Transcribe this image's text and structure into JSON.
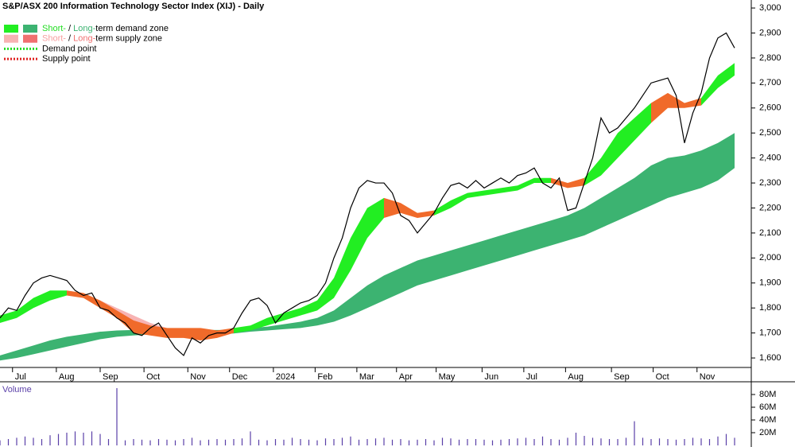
{
  "chart_data": [
    {
      "type": "line",
      "title": "S&P/ASX 200 Information Technology Sector Index (XIJ) - Daily",
      "xlim": [
        0,
        360
      ],
      "xticks": [
        {
          "value": 6,
          "label": "Jul"
        },
        {
          "value": 27,
          "label": "Aug"
        },
        {
          "value": 48,
          "label": "Sep"
        },
        {
          "value": 69,
          "label": "Oct"
        },
        {
          "value": 90,
          "label": "Nov"
        },
        {
          "value": 110,
          "label": "Dec"
        },
        {
          "value": 131,
          "label": "2024"
        },
        {
          "value": 151,
          "label": "Feb"
        },
        {
          "value": 171,
          "label": "Mar"
        },
        {
          "value": 190,
          "label": "Apr"
        },
        {
          "value": 209,
          "label": "May"
        },
        {
          "value": 231,
          "label": "Jun"
        },
        {
          "value": 251,
          "label": "Jul"
        },
        {
          "value": 271,
          "label": "Aug"
        },
        {
          "value": 293,
          "label": "Sep"
        },
        {
          "value": 313,
          "label": "Oct"
        },
        {
          "value": 334,
          "label": "Nov"
        }
      ],
      "ylim": [
        1562,
        3032
      ],
      "yticks": [
        {
          "value": 1600,
          "label": "1,600"
        },
        {
          "value": 1700,
          "label": "1,700"
        },
        {
          "value": 1800,
          "label": "1,800"
        },
        {
          "value": 1900,
          "label": "1,900"
        },
        {
          "value": 2000,
          "label": "2,000"
        },
        {
          "value": 2100,
          "label": "2,100"
        },
        {
          "value": 2200,
          "label": "2,200"
        },
        {
          "value": 2300,
          "label": "2,300"
        },
        {
          "value": 2400,
          "label": "2,400"
        },
        {
          "value": 2500,
          "label": "2,500"
        },
        {
          "value": 2600,
          "label": "2,600"
        },
        {
          "value": 2700,
          "label": "2,700"
        },
        {
          "value": 2800,
          "label": "2,800"
        },
        {
          "value": 2900,
          "label": "2,900"
        },
        {
          "value": 3000,
          "label": "3,000"
        }
      ],
      "legend": [
        {
          "swatches": [
            "#22ee22",
            "#3cb371"
          ],
          "parts": [
            "Short-",
            " / ",
            "Long-",
            "term demand zone"
          ],
          "part_colors": [
            "#22dd22",
            "#000000",
            "#3cb371",
            "#000000"
          ]
        },
        {
          "swatches": [
            "#f7b3b3",
            "#f07070"
          ],
          "parts": [
            "Short-",
            " / ",
            "Long-",
            "term supply zone"
          ],
          "part_colors": [
            "#f7a0a0",
            "#000000",
            "#f07070",
            "#000000"
          ]
        },
        {
          "line": "#22dd22",
          "parts": [
            "Demand point"
          ],
          "part_colors": [
            "#000000"
          ]
        },
        {
          "line": "#e02020",
          "parts": [
            "Supply point"
          ],
          "part_colors": [
            "#000000"
          ]
        }
      ],
      "zone_x": [
        0,
        8,
        16,
        24,
        32,
        40,
        48,
        56,
        64,
        72,
        80,
        88,
        96,
        104,
        112,
        120,
        128,
        136,
        144,
        152,
        160,
        168,
        176,
        184,
        192,
        200,
        208,
        216,
        224,
        232,
        240,
        248,
        256,
        264,
        272,
        280,
        288,
        296,
        304,
        312,
        320,
        328,
        336,
        344,
        352
      ],
      "zones": [
        {
          "color": "#3cb371",
          "upper": [
            1610,
            1630,
            1650,
            1670,
            1685,
            1695,
            1705,
            1710,
            1712,
            1713,
            1712,
            1712,
            1712,
            1712,
            1712,
            1720,
            1725,
            1735,
            1745,
            1760,
            1790,
            1840,
            1890,
            1930,
            1960,
            1990,
            2010,
            2030,
            2050,
            2070,
            2090,
            2110,
            2130,
            2150,
            2170,
            2200,
            2240,
            2280,
            2320,
            2370,
            2400,
            2410,
            2430,
            2460,
            2500
          ],
          "lower": [
            1590,
            1600,
            1615,
            1630,
            1645,
            1660,
            1675,
            1685,
            1690,
            1695,
            1695,
            1695,
            1695,
            1695,
            1698,
            1705,
            1710,
            1715,
            1720,
            1730,
            1745,
            1770,
            1800,
            1830,
            1860,
            1890,
            1910,
            1930,
            1950,
            1970,
            1990,
            2010,
            2030,
            2050,
            2070,
            2090,
            2120,
            2150,
            2180,
            2210,
            2240,
            2260,
            2280,
            2310,
            2360
          ]
        },
        {
          "color": "#f7b3b3",
          "upper": [
            null,
            null,
            null,
            null,
            null,
            null,
            1830,
            1800,
            1770,
            1740,
            1720,
            1700,
            null,
            null,
            null,
            null,
            null,
            null,
            null,
            null,
            null,
            null,
            null,
            null,
            null,
            null,
            null,
            null,
            null,
            null,
            null,
            null,
            null,
            null,
            null,
            null,
            null,
            null,
            null,
            null,
            null,
            null,
            null,
            null,
            null
          ],
          "lower": [
            null,
            null,
            null,
            null,
            null,
            null,
            1800,
            1760,
            1720,
            1700,
            1690,
            1690,
            null,
            null,
            null,
            null,
            null,
            null,
            null,
            null,
            null,
            null,
            null,
            null,
            null,
            null,
            null,
            null,
            null,
            null,
            null,
            null,
            null,
            null,
            null,
            null,
            null,
            null,
            null,
            null,
            null,
            null,
            null,
            null,
            null
          ]
        },
        {
          "color": "#22ee22",
          "upper": [
            1770,
            1790,
            1840,
            1870,
            1870,
            null,
            null,
            null,
            null,
            null,
            null,
            null,
            null,
            null,
            1720,
            1730,
            1760,
            1780,
            1800,
            1830,
            1920,
            2080,
            2200,
            2240,
            null,
            null,
            2190,
            2230,
            2260,
            2270,
            2280,
            2290,
            2320,
            2320,
            null,
            2320,
            2400,
            2500,
            2560,
            2620,
            null,
            null,
            2640,
            2730,
            2780
          ],
          "lower": [
            1740,
            1760,
            1800,
            1830,
            1850,
            null,
            null,
            null,
            null,
            null,
            null,
            null,
            null,
            null,
            1700,
            1710,
            1730,
            1750,
            1770,
            1790,
            1840,
            1950,
            2080,
            2160,
            null,
            null,
            2170,
            2200,
            2240,
            2250,
            2260,
            2270,
            2300,
            2300,
            null,
            2290,
            2330,
            2400,
            2470,
            2540,
            null,
            null,
            2610,
            2680,
            2730
          ]
        },
        {
          "color": "#f06a2a",
          "upper": [
            null,
            null,
            null,
            null,
            1870,
            1860,
            1830,
            1790,
            1750,
            1730,
            1720,
            1720,
            1720,
            1710,
            1720,
            null,
            null,
            null,
            null,
            null,
            null,
            null,
            null,
            2240,
            2220,
            2180,
            2190,
            null,
            null,
            null,
            null,
            null,
            null,
            2320,
            2300,
            2320,
            null,
            null,
            null,
            2620,
            2660,
            2620,
            2640,
            null,
            null
          ],
          "lower": [
            null,
            null,
            null,
            null,
            1850,
            1840,
            1800,
            1760,
            1700,
            1690,
            1680,
            1680,
            1670,
            1680,
            1700,
            null,
            null,
            null,
            null,
            null,
            null,
            null,
            null,
            2160,
            2180,
            2160,
            2170,
            null,
            null,
            null,
            null,
            null,
            null,
            2300,
            2280,
            2290,
            null,
            null,
            null,
            2540,
            2600,
            2600,
            2610,
            null,
            null
          ]
        }
      ],
      "series": [
        {
          "color": "#000000",
          "x": [
            0,
            4,
            8,
            12,
            16,
            20,
            24,
            28,
            32,
            36,
            40,
            44,
            48,
            52,
            56,
            60,
            64,
            68,
            72,
            76,
            80,
            84,
            88,
            92,
            96,
            100,
            104,
            108,
            112,
            116,
            120,
            124,
            128,
            132,
            136,
            140,
            144,
            148,
            152,
            156,
            160,
            164,
            168,
            172,
            176,
            180,
            184,
            188,
            192,
            196,
            200,
            204,
            208,
            212,
            216,
            220,
            224,
            228,
            232,
            236,
            240,
            244,
            248,
            252,
            256,
            260,
            264,
            268,
            272,
            276,
            280,
            284,
            288,
            292,
            296,
            300,
            304,
            308,
            312,
            316,
            320,
            324,
            328,
            332,
            336,
            340,
            344,
            348,
            352
          ],
          "values": [
            1760,
            1800,
            1790,
            1850,
            1900,
            1920,
            1930,
            1920,
            1910,
            1870,
            1850,
            1860,
            1800,
            1790,
            1760,
            1740,
            1700,
            1690,
            1720,
            1740,
            1690,
            1640,
            1610,
            1680,
            1660,
            1690,
            1700,
            1700,
            1720,
            1780,
            1830,
            1840,
            1810,
            1740,
            1780,
            1800,
            1820,
            1830,
            1850,
            1900,
            2000,
            2080,
            2200,
            2280,
            2310,
            2300,
            2300,
            2260,
            2170,
            2150,
            2100,
            2140,
            2180,
            2240,
            2290,
            2300,
            2280,
            2310,
            2280,
            2300,
            2320,
            2300,
            2330,
            2340,
            2360,
            2300,
            2280,
            2320,
            2190,
            2200,
            2300,
            2400,
            2560,
            2500,
            2520,
            2560,
            2600,
            2650,
            2700,
            2710,
            2720,
            2650,
            2460,
            2580,
            2660,
            2800,
            2880,
            2900,
            2840
          ]
        }
      ]
    },
    {
      "type": "bar",
      "title": "Volume",
      "color": "#5a3fa8",
      "xlim": [
        0,
        360
      ],
      "ylim": [
        0,
        100
      ],
      "yticks": [
        {
          "value": 20,
          "label": "20M"
        },
        {
          "value": 40,
          "label": "40M"
        },
        {
          "value": 60,
          "label": "60M"
        },
        {
          "value": 80,
          "label": "80M"
        }
      ],
      "x": [
        0,
        4,
        8,
        12,
        16,
        20,
        24,
        28,
        32,
        36,
        40,
        44,
        48,
        52,
        56,
        60,
        64,
        68,
        72,
        76,
        80,
        84,
        88,
        92,
        96,
        100,
        104,
        108,
        112,
        116,
        120,
        124,
        128,
        132,
        136,
        140,
        144,
        148,
        152,
        156,
        160,
        164,
        168,
        172,
        176,
        180,
        184,
        188,
        192,
        196,
        200,
        204,
        208,
        212,
        216,
        220,
        224,
        228,
        232,
        236,
        240,
        244,
        248,
        252,
        256,
        260,
        264,
        268,
        272,
        276,
        280,
        284,
        288,
        292,
        296,
        300,
        304,
        308,
        312,
        316,
        320,
        324,
        328,
        332,
        336,
        340,
        344,
        348,
        352
      ],
      "values": [
        8,
        10,
        12,
        14,
        12,
        10,
        16,
        18,
        20,
        22,
        20,
        22,
        18,
        10,
        90,
        8,
        10,
        9,
        8,
        10,
        9,
        8,
        10,
        12,
        8,
        9,
        10,
        9,
        10,
        11,
        22,
        9,
        8,
        10,
        9,
        12,
        10,
        9,
        8,
        11,
        10,
        12,
        14,
        9,
        10,
        11,
        12,
        9,
        10,
        8,
        9,
        10,
        8,
        12,
        11,
        9,
        10,
        10,
        9,
        8,
        9,
        10,
        11,
        12,
        10,
        14,
        10,
        9,
        12,
        20,
        15,
        12,
        11,
        10,
        10,
        12,
        38,
        12,
        10,
        11,
        10,
        9,
        10,
        12,
        11,
        10,
        14,
        18,
        12
      ]
    }
  ]
}
